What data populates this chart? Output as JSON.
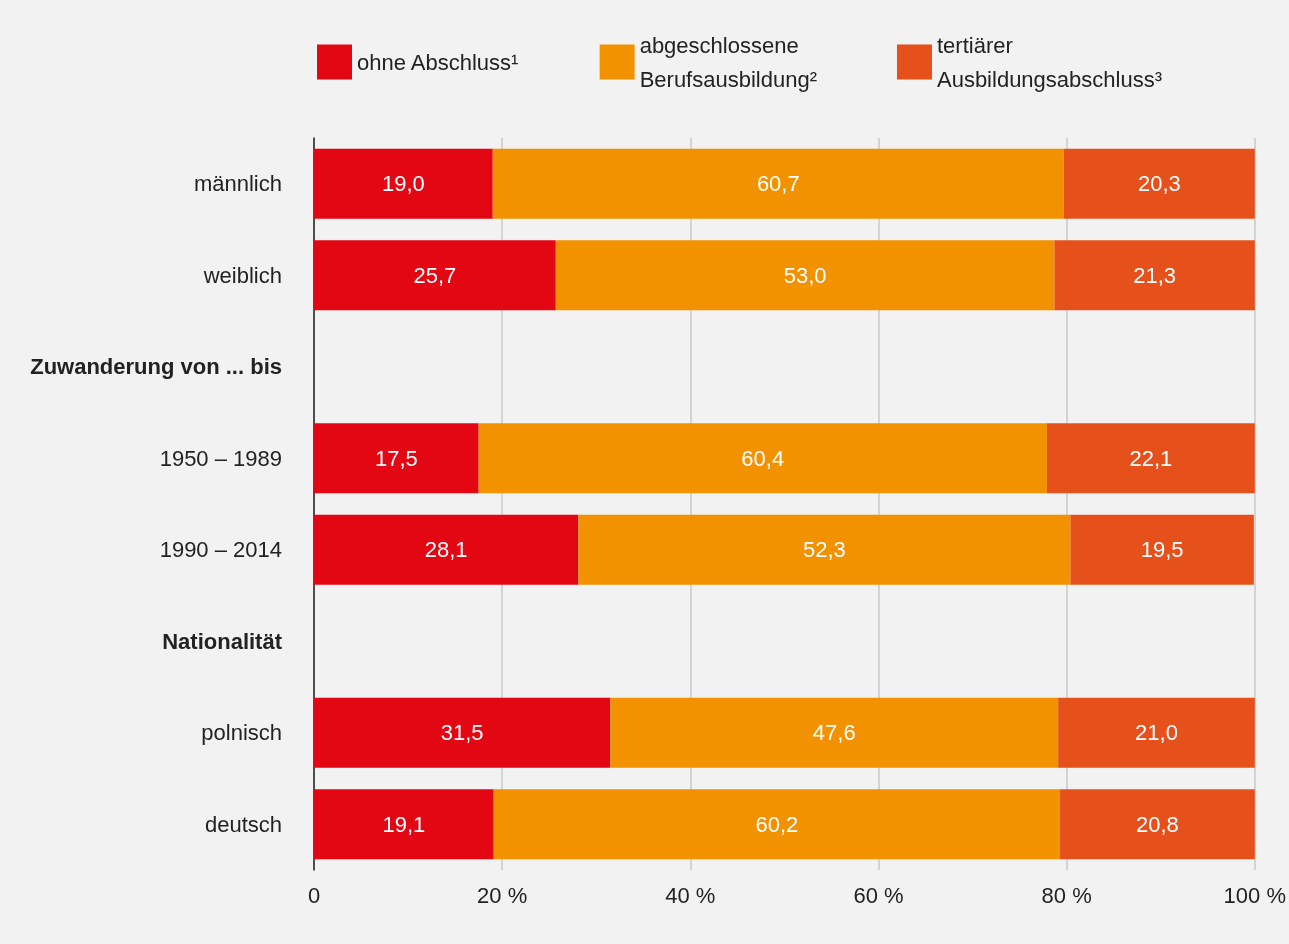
{
  "chart_data": {
    "type": "bar",
    "orientation": "horizontal",
    "stacked": true,
    "categories": [
      "männlich",
      "weiblich",
      "Zuwanderung von ... bis",
      "1950 – 1989",
      "1990 – 2014",
      "Nationalität",
      "polnisch",
      "deutsch"
    ],
    "series": [
      {
        "name": "ohne Abschluss¹",
        "color": "#e30613",
        "values": [
          19.0,
          25.7,
          null,
          17.5,
          28.1,
          null,
          31.5,
          19.1
        ],
        "value_labels": [
          "19,0",
          "25,7",
          null,
          "17,5",
          "28,1",
          null,
          "31,5",
          "19,1"
        ]
      },
      {
        "name": "abgeschlossene\nBerufsausbildung²",
        "color": "#f39200",
        "values": [
          60.7,
          53.0,
          null,
          60.4,
          52.3,
          null,
          47.6,
          60.2
        ],
        "value_labels": [
          "60,7",
          "53,0",
          null,
          "60,4",
          "52,3",
          null,
          "47,6",
          "60,2"
        ]
      },
      {
        "name": "tertiärer\nAusbildungsabschluss³",
        "color": "#e6501a",
        "values": [
          20.3,
          21.3,
          null,
          22.1,
          19.5,
          null,
          21.0,
          20.8
        ],
        "value_labels": [
          "20,3",
          "21,3",
          null,
          "22,1",
          "19,5",
          null,
          "21,0",
          "20,8"
        ]
      }
    ],
    "xlim": [
      0,
      100
    ],
    "xticks": [
      0,
      {
        "value": 20,
        "label": "20 %"
      },
      {
        "value": 40,
        "label": "40 %"
      },
      {
        "value": 60,
        "label": "60 %"
      },
      {
        "value": 80,
        "label": "80 %"
      },
      {
        "value": 100,
        "label": "100 %"
      }
    ],
    "grid": "x",
    "legend": "top"
  }
}
